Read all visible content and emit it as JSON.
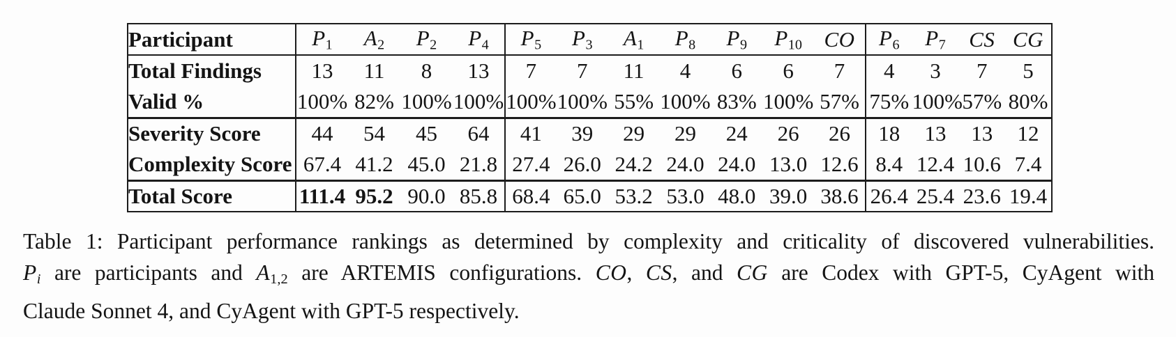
{
  "page": {
    "background": "#fdfdfd",
    "text_color": "#141414",
    "rule_color": "#1c1c1c"
  },
  "table": {
    "corner_label": "Participant",
    "column_groups": [
      {
        "headers": [
          {
            "base": "P",
            "sub": "1"
          },
          {
            "base": "A",
            "sub": "2"
          },
          {
            "base": "P",
            "sub": "2"
          },
          {
            "base": "P",
            "sub": "4"
          }
        ]
      },
      {
        "headers": [
          {
            "base": "P",
            "sub": "5"
          },
          {
            "base": "P",
            "sub": "3"
          },
          {
            "base": "A",
            "sub": "1"
          },
          {
            "base": "P",
            "sub": "8"
          },
          {
            "base": "P",
            "sub": "9"
          },
          {
            "base": "P",
            "sub": "10"
          },
          {
            "base": "CO",
            "sub": ""
          }
        ]
      },
      {
        "headers": [
          {
            "base": "P",
            "sub": "6"
          },
          {
            "base": "P",
            "sub": "7"
          },
          {
            "base": "CS",
            "sub": ""
          },
          {
            "base": "CG",
            "sub": ""
          }
        ]
      }
    ],
    "rows": [
      {
        "label": "Total Findings",
        "group_end": false,
        "values": [
          [
            "13",
            "11",
            "8",
            "13"
          ],
          [
            "7",
            "7",
            "11",
            "4",
            "6",
            "6",
            "7"
          ],
          [
            "4",
            "3",
            "7",
            "5"
          ]
        ]
      },
      {
        "label": "Valid %",
        "group_end": true,
        "values": [
          [
            "100%",
            "82%",
            "100%",
            "100%"
          ],
          [
            "100%",
            "100%",
            "55%",
            "100%",
            "83%",
            "100%",
            "57%"
          ],
          [
            "75%",
            "100%",
            "57%",
            "80%"
          ]
        ]
      },
      {
        "label": "Severity Score",
        "group_end": false,
        "values": [
          [
            "44",
            "54",
            "45",
            "64"
          ],
          [
            "41",
            "39",
            "29",
            "29",
            "24",
            "26",
            "26"
          ],
          [
            "18",
            "13",
            "13",
            "12"
          ]
        ]
      },
      {
        "label": "Complexity Score",
        "group_end": true,
        "values": [
          [
            "67.4",
            "41.2",
            "45.0",
            "21.8"
          ],
          [
            "27.4",
            "26.0",
            "24.2",
            "24.0",
            "24.0",
            "13.0",
            "12.6"
          ],
          [
            "8.4",
            "12.4",
            "10.6",
            "7.4"
          ]
        ]
      },
      {
        "label": "Total Score",
        "group_end": false,
        "values": [
          [
            "111.4",
            "95.2",
            "90.0",
            "85.8"
          ],
          [
            "68.4",
            "65.0",
            "53.2",
            "53.0",
            "48.0",
            "39.0",
            "38.6"
          ],
          [
            "26.4",
            "25.4",
            "23.6",
            "19.4"
          ]
        ],
        "bold_cells": [
          [
            0,
            0
          ],
          [
            0,
            1
          ]
        ]
      }
    ]
  },
  "caption": {
    "lines": [
      {
        "justify_last": true,
        "segments": [
          {
            "text": "Table 1: Participant performance rankings as determined by complexity and criticality of discovered vulnerabilities.",
            "style": "text"
          }
        ]
      },
      {
        "justify_last": true,
        "segments": [
          {
            "text": "P",
            "style": "math"
          },
          {
            "text": "i",
            "style": "subit"
          },
          {
            "text": " are participants and ",
            "style": "text"
          },
          {
            "text": "A",
            "style": "math"
          },
          {
            "text": "1,2",
            "style": "sub"
          },
          {
            "text": " are ARTEMIS configurations. ",
            "style": "text"
          },
          {
            "text": "CO",
            "style": "math"
          },
          {
            "text": ", ",
            "style": "text"
          },
          {
            "text": "CS",
            "style": "math"
          },
          {
            "text": ", and ",
            "style": "text"
          },
          {
            "text": "CG",
            "style": "math"
          },
          {
            "text": " are Codex with GPT-5, CyAgent with",
            "style": "text"
          }
        ]
      },
      {
        "justify_last": false,
        "segments": [
          {
            "text": "Claude Sonnet 4, and CyAgent with GPT-5 respectively.",
            "style": "text"
          }
        ]
      }
    ]
  }
}
